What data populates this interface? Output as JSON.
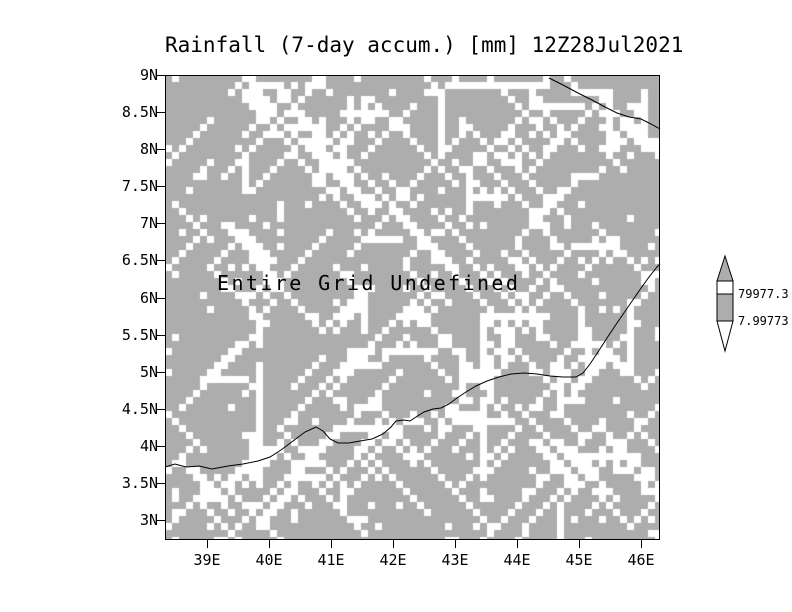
{
  "title": "Rainfall (7-day accum.) [mm] 12Z28Jul2021",
  "status_message": "Entire Grid Undefined",
  "axes": {
    "y_ticks": [
      "9N",
      "8.5N",
      "8N",
      "7.5N",
      "7N",
      "6.5N",
      "6N",
      "5.5N",
      "5N",
      "4.5N",
      "4N",
      "3.5N",
      "3N"
    ],
    "x_ticks": [
      "39E",
      "40E",
      "41E",
      "42E",
      "43E",
      "44E",
      "45E",
      "46E"
    ]
  },
  "colorbar": {
    "upper_label": "79977.3",
    "lower_label": "7.99773"
  },
  "colors": {
    "grid_fill": "#adadad",
    "speckle": "#ffffff",
    "line": "#000000",
    "background": "#ffffff"
  },
  "chart_data": {
    "type": "heatmap",
    "title": "Rainfall (7-day accum.) [mm] 12Z28Jul2021",
    "variable": "Rainfall (7-day accum.)",
    "units": "mm",
    "valid_time": "12Z28Jul2021",
    "x_tick_labels": [
      "39E",
      "40E",
      "41E",
      "42E",
      "43E",
      "44E",
      "45E",
      "46E"
    ],
    "y_tick_labels": [
      "9N",
      "8.5N",
      "8N",
      "7.5N",
      "7N",
      "6.5N",
      "6N",
      "5.5N",
      "5N",
      "4.5N",
      "4N",
      "3.5N",
      "3N"
    ],
    "colorbar_levels": [
      "7.99773",
      "79977.3"
    ],
    "legend_position": "right",
    "grid": false,
    "values": "Entire Grid Undefined"
  }
}
